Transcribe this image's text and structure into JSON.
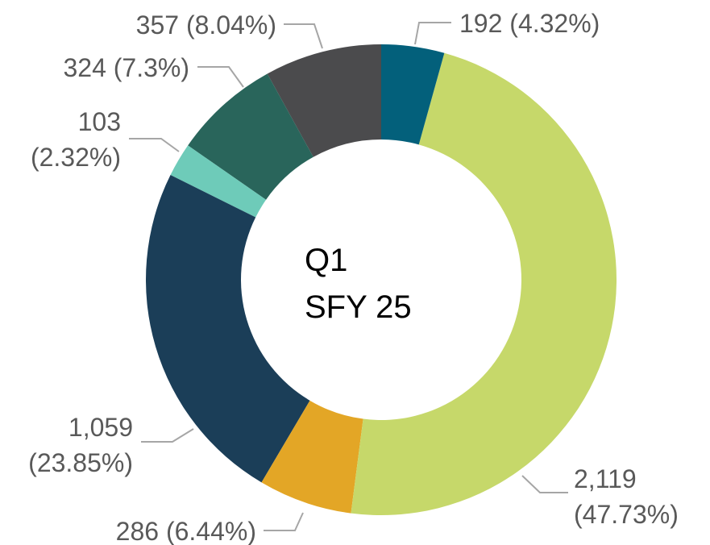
{
  "chart_data": {
    "type": "donut",
    "center_text": [
      "Q1",
      "SFY 25"
    ],
    "values": [
      192,
      2119,
      286,
      1059,
      103,
      324,
      357
    ],
    "value_labels": [
      "192 (4.32%)",
      "2,119 (47.73%)",
      "286 (6.44%)",
      "1,059 (23.85%)",
      "103 (2.32%)",
      "324 (7.3%)",
      "357 (8.04%)"
    ],
    "colors": [
      "#03607b",
      "#c6d86a",
      "#e3a626",
      "#1b3e58",
      "#6ecbb9",
      "#29655b",
      "#4b4b4d"
    ]
  }
}
